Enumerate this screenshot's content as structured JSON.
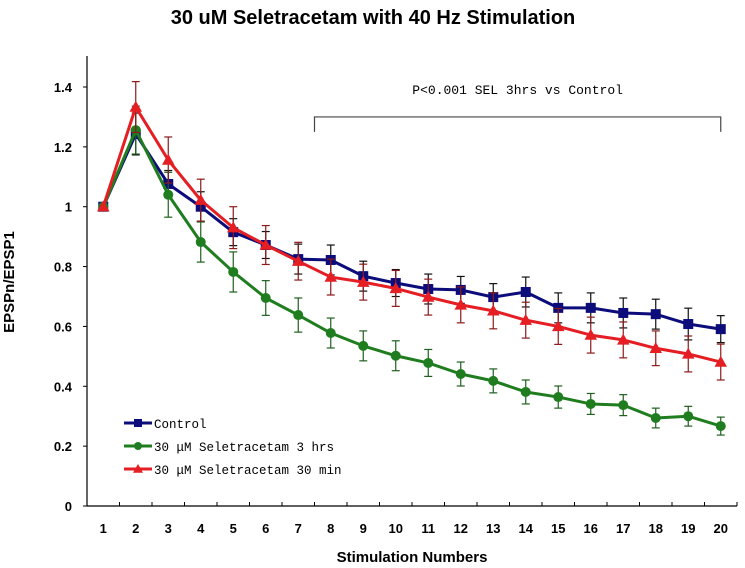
{
  "chart_data": {
    "type": "line",
    "title": "30 uM Seletracetam with 40 Hz Stimulation",
    "xlabel": "Stimulation Numbers",
    "ylabel": "EPSPn/EPSP1",
    "ylim": [
      0,
      1.5
    ],
    "yticks": [
      0,
      0.2,
      0.4,
      0.6,
      0.8,
      1,
      1.2,
      1.4
    ],
    "ytick_labels": [
      "0",
      "0.2",
      "0.4",
      "0.6",
      "0.8",
      "1",
      "1.2",
      "1.4"
    ],
    "categories": [
      "1",
      "2",
      "3",
      "4",
      "5",
      "6",
      "7",
      "8",
      "9",
      "10",
      "11",
      "12",
      "13",
      "14",
      "15",
      "16",
      "17",
      "18",
      "19",
      "20"
    ],
    "grid": false,
    "legend_position": "bottom-left",
    "series": [
      {
        "name": "Control",
        "color": "#0c0c7a",
        "error_color": "#111111",
        "marker": "square",
        "values": [
          1.0,
          1.243,
          1.076,
          1.0,
          0.915,
          0.872,
          0.825,
          0.822,
          0.768,
          0.745,
          0.725,
          0.722,
          0.698,
          0.715,
          0.662,
          0.662,
          0.645,
          0.641,
          0.608,
          0.591
        ],
        "errors": [
          0.0,
          0.07,
          0.045,
          0.05,
          0.045,
          0.045,
          0.05,
          0.05,
          0.05,
          0.045,
          0.05,
          0.045,
          0.045,
          0.05,
          0.05,
          0.05,
          0.05,
          0.05,
          0.053,
          0.045
        ]
      },
      {
        "name": "30 μM Seletracetam 3 hrs",
        "color": "#1f7d1f",
        "error_color": "#1f5f1f",
        "marker": "circle",
        "values": [
          1.0,
          1.256,
          1.04,
          0.882,
          0.782,
          0.695,
          0.638,
          0.578,
          0.535,
          0.502,
          0.478,
          0.441,
          0.418,
          0.381,
          0.364,
          0.341,
          0.337,
          0.294,
          0.3,
          0.267
        ],
        "errors": [
          0.0,
          0.08,
          0.075,
          0.067,
          0.067,
          0.058,
          0.057,
          0.05,
          0.05,
          0.05,
          0.045,
          0.04,
          0.04,
          0.04,
          0.037,
          0.035,
          0.035,
          0.033,
          0.033,
          0.03
        ]
      },
      {
        "name": "30 μM Seletracetam 30 min",
        "color": "#e41e23",
        "error_color": "#8c1a1a",
        "marker": "triangle",
        "values": [
          1.0,
          1.333,
          1.156,
          1.022,
          0.93,
          0.872,
          0.818,
          0.765,
          0.748,
          0.727,
          0.698,
          0.672,
          0.652,
          0.621,
          0.6,
          0.571,
          0.555,
          0.527,
          0.508,
          0.481
        ],
        "errors": [
          0.0,
          0.085,
          0.077,
          0.07,
          0.07,
          0.065,
          0.063,
          0.06,
          0.06,
          0.06,
          0.06,
          0.06,
          0.06,
          0.06,
          0.06,
          0.06,
          0.06,
          0.058,
          0.06,
          0.06
        ]
      }
    ],
    "annotations": [
      {
        "text": "P<0.001 SEL 3hrs vs Control",
        "bracket_from": "7.5",
        "bracket_to": "20",
        "bracket_y_value": 1.3
      }
    ]
  }
}
